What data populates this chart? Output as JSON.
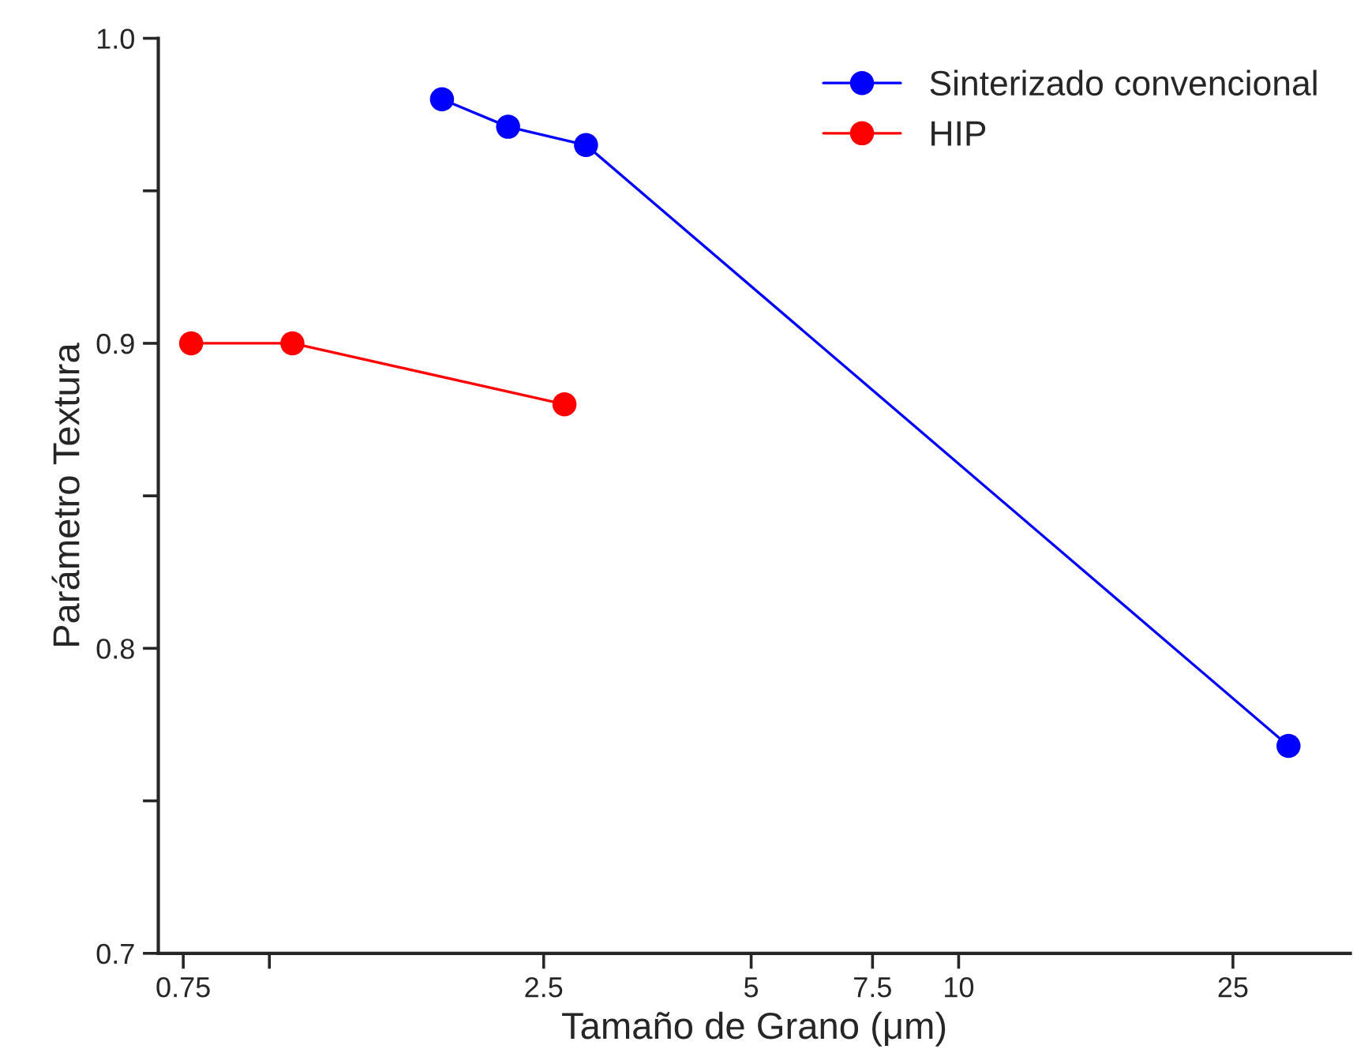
{
  "chart_data": {
    "type": "line",
    "xlabel": "Tamaño de Grano (μm)",
    "ylabel": "Parámetro Textura",
    "log": "x",
    "xlim": [
      0.69,
      37
    ],
    "ylim": [
      0.7,
      1.0
    ],
    "xticks": [
      0.75,
      {
        "value": 1,
        "label": null
      },
      2.5,
      5,
      7.5,
      10,
      25
    ],
    "yticks": [
      {
        "value": 0.7,
        "label": "0.7"
      },
      {
        "value": 0.75,
        "label": null
      },
      {
        "value": 0.8,
        "label": "0.8"
      },
      {
        "value": 0.85,
        "label": null
      },
      {
        "value": 0.9,
        "label": "0.9"
      },
      {
        "value": 0.95,
        "label": null
      },
      {
        "value": 1.0,
        "label": "1.0"
      }
    ],
    "marker": "circle",
    "line_style": "solid",
    "grid": false,
    "legend": "top right",
    "series": [
      {
        "name": "Sinterizado convencional",
        "color": "#0000ff",
        "x": [
          1.78,
          2.22,
          2.88,
          30.1
        ],
        "values": [
          0.98,
          0.971,
          0.965,
          0.768
        ]
      },
      {
        "name": "HIP",
        "color": "#ff0000",
        "x": [
          0.77,
          1.08,
          2.68
        ],
        "values": [
          0.9,
          0.9,
          0.88
        ]
      }
    ]
  }
}
